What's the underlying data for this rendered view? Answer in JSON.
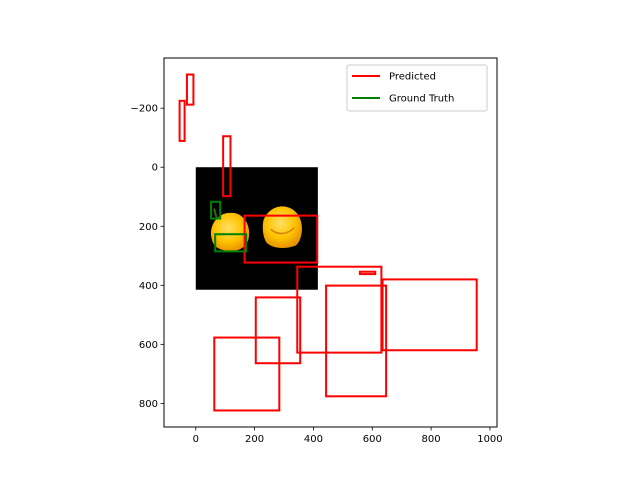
{
  "chart_data": {
    "type": "bounding-box-overlay",
    "title": "",
    "xlabel": "",
    "ylabel": "",
    "xlim": [
      -108,
      1024
    ],
    "ylim": [
      880,
      -370
    ],
    "y_inverted": true,
    "aspect": "equal",
    "grid": false,
    "legend_placement": "top-right",
    "xticks": [
      0,
      200,
      400,
      600,
      800,
      1000
    ],
    "yticks": [
      -200,
      0,
      200,
      400,
      600,
      800
    ],
    "xtick_labels": [
      "0",
      "200",
      "400",
      "600",
      "800",
      "1000"
    ],
    "ytick_labels": [
      "−200",
      "0",
      "200",
      "400",
      "600",
      "800"
    ],
    "image_extent": [
      0,
      415,
      0,
      415
    ],
    "series": [
      {
        "name": "Predicted",
        "color": "#ff0000",
        "boxes": [
          {
            "x0": -55,
            "y0": -225,
            "x1": -38,
            "y1": -89
          },
          {
            "x0": -30,
            "y0": -314,
            "x1": -8,
            "y1": -212
          },
          {
            "x0": 93,
            "y0": -105,
            "x1": 118,
            "y1": 98
          },
          {
            "x0": 166,
            "y0": 164,
            "x1": 413,
            "y1": 323
          },
          {
            "x0": 345,
            "y0": 337,
            "x1": 631,
            "y1": 628
          },
          {
            "x0": 558,
            "y0": 354,
            "x1": 610,
            "y1": 362
          },
          {
            "x0": 635,
            "y0": 380,
            "x1": 955,
            "y1": 620
          },
          {
            "x0": 204,
            "y0": 441,
            "x1": 355,
            "y1": 664
          },
          {
            "x0": 443,
            "y0": 401,
            "x1": 647,
            "y1": 776
          },
          {
            "x0": 63,
            "y0": 577,
            "x1": 284,
            "y1": 824
          }
        ]
      },
      {
        "name": "Ground Truth",
        "color": "#008000",
        "boxes": [
          {
            "x0": 52,
            "y0": 117,
            "x1": 83,
            "y1": 174
          },
          {
            "x0": 66,
            "y0": 227,
            "x1": 171,
            "y1": 285
          }
        ]
      }
    ],
    "legend": [
      {
        "label": "Predicted",
        "color": "#ff0000"
      },
      {
        "label": "Ground Truth",
        "color": "#008000"
      }
    ]
  }
}
